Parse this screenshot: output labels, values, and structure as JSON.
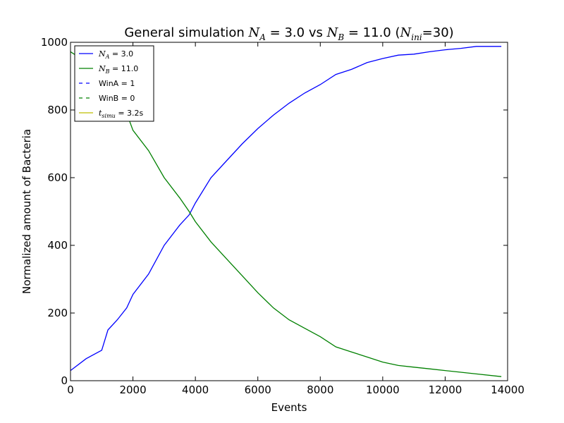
{
  "chart_data": {
    "type": "line",
    "title": {
      "prefix": "General simulation ",
      "a_var": "N",
      "a_sub": "A",
      "a_val": " = 3.0 vs ",
      "b_var": "N",
      "b_sub": "B",
      "b_val": " = 11.0 (",
      "ini_var": "N",
      "ini_sub": "ini",
      "ini_val": "=30)"
    },
    "xlabel": "Events",
    "ylabel": "Normalized amount of Bacteria",
    "xlim": [
      0,
      14000
    ],
    "ylim": [
      0,
      1000
    ],
    "xticks": [
      "0",
      "2000",
      "4000",
      "6000",
      "8000",
      "10000",
      "12000",
      "14000"
    ],
    "yticks": [
      "0",
      "200",
      "400",
      "600",
      "800",
      "1000"
    ],
    "grid": false,
    "legend_position": "top-left",
    "legend": [
      {
        "var": "N",
        "sub": "A",
        "text": " = 3.0",
        "color": "#0000ff",
        "style": "solid"
      },
      {
        "var": "N",
        "sub": "B",
        "text": " = 11.0",
        "color": "#008000",
        "style": "solid"
      },
      {
        "var": "",
        "sub": "",
        "text": "WinA = 1",
        "color": "#0000ff",
        "style": "dashed"
      },
      {
        "var": "",
        "sub": "",
        "text": "WinB = 0",
        "color": "#008000",
        "style": "dashed"
      },
      {
        "var": "t",
        "sub": "simu",
        "text": " = 3.2s",
        "color": "#bfbf00",
        "style": "solid"
      }
    ],
    "series": [
      {
        "name": "N_A = 3.0",
        "color": "#0000ff",
        "x": [
          0,
          500,
          1000,
          1200,
          1500,
          1800,
          2000,
          2500,
          3000,
          3500,
          3800,
          4000,
          4500,
          5000,
          5500,
          6000,
          6500,
          7000,
          7500,
          8000,
          8500,
          9000,
          9500,
          10000,
          10500,
          11000,
          11500,
          12000,
          12500,
          13000,
          13800
        ],
        "y": [
          30,
          65,
          90,
          150,
          180,
          215,
          255,
          315,
          400,
          460,
          490,
          525,
          600,
          650,
          700,
          745,
          785,
          820,
          850,
          875,
          905,
          920,
          940,
          952,
          962,
          965,
          972,
          978,
          982,
          988,
          988
        ]
      },
      {
        "name": "N_B = 11.0",
        "color": "#008000",
        "x": [
          0,
          200,
          1000,
          1500,
          1800,
          2000,
          2500,
          3000,
          3500,
          3800,
          4000,
          4500,
          5000,
          5500,
          6000,
          6500,
          7000,
          7500,
          8000,
          8500,
          9000,
          9500,
          10000,
          10500,
          11000,
          11500,
          12000,
          12500,
          13000,
          13800
        ],
        "y": [
          972,
          960,
          880,
          830,
          790,
          740,
          680,
          600,
          540,
          500,
          470,
          410,
          360,
          310,
          260,
          215,
          180,
          155,
          130,
          100,
          85,
          70,
          55,
          45,
          40,
          35,
          30,
          25,
          20,
          12
        ]
      }
    ]
  }
}
